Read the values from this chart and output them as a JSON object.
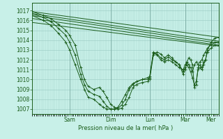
{
  "xlabel": "Pression niveau de la mer( hPa )",
  "bg_color": "#c8f0e8",
  "grid_color": "#a0d0c8",
  "line_color": "#1a5c1a",
  "ylim": [
    1006.5,
    1017.8
  ],
  "yticks": [
    1007,
    1008,
    1009,
    1010,
    1011,
    1012,
    1013,
    1014,
    1015,
    1016,
    1017
  ],
  "day_labels": [
    "Sam",
    "Dim",
    "Lun",
    "Mar",
    "Mer"
  ],
  "day_positions": [
    0.2,
    0.42,
    0.63,
    0.82,
    0.96
  ],
  "xlim": [
    0.0,
    1.0
  ],
  "straight_lines": [
    [
      [
        0.0,
        1016.9
      ],
      [
        1.0,
        1014.3
      ]
    ],
    [
      [
        0.0,
        1016.7
      ],
      [
        1.0,
        1013.9
      ]
    ],
    [
      [
        0.0,
        1016.5
      ],
      [
        1.0,
        1013.7
      ]
    ],
    [
      [
        0.0,
        1016.2
      ],
      [
        1.0,
        1013.5
      ]
    ],
    [
      [
        0.0,
        1015.8
      ],
      [
        1.0,
        1013.4
      ]
    ]
  ],
  "wiggly1": [
    [
      0.0,
      1016.9
    ],
    [
      0.06,
      1016.5
    ],
    [
      0.1,
      1016.2
    ],
    [
      0.14,
      1015.6
    ],
    [
      0.18,
      1015.0
    ],
    [
      0.2,
      1014.5
    ],
    [
      0.23,
      1013.5
    ],
    [
      0.26,
      1011.2
    ],
    [
      0.28,
      1010.0
    ],
    [
      0.3,
      1009.3
    ],
    [
      0.33,
      1009.0
    ],
    [
      0.36,
      1009.2
    ],
    [
      0.38,
      1008.8
    ],
    [
      0.4,
      1008.2
    ],
    [
      0.42,
      1007.5
    ],
    [
      0.44,
      1007.2
    ],
    [
      0.46,
      1007.0
    ],
    [
      0.48,
      1007.1
    ],
    [
      0.5,
      1007.5
    ],
    [
      0.52,
      1008.2
    ],
    [
      0.54,
      1009.2
    ],
    [
      0.56,
      1009.5
    ],
    [
      0.59,
      1009.7
    ],
    [
      0.62,
      1009.8
    ],
    [
      0.63,
      1010.0
    ],
    [
      0.65,
      1012.5
    ],
    [
      0.67,
      1012.8
    ],
    [
      0.69,
      1012.6
    ],
    [
      0.71,
      1012.2
    ],
    [
      0.73,
      1012.5
    ],
    [
      0.75,
      1012.2
    ],
    [
      0.77,
      1011.8
    ],
    [
      0.79,
      1011.5
    ],
    [
      0.81,
      1010.5
    ],
    [
      0.82,
      1011.0
    ],
    [
      0.83,
      1011.8
    ],
    [
      0.84,
      1012.2
    ],
    [
      0.85,
      1012.0
    ],
    [
      0.86,
      1011.5
    ],
    [
      0.87,
      1009.2
    ],
    [
      0.88,
      1009.5
    ],
    [
      0.89,
      1011.2
    ],
    [
      0.9,
      1011.5
    ],
    [
      0.91,
      1011.2
    ],
    [
      0.92,
      1011.8
    ],
    [
      0.93,
      1012.0
    ],
    [
      0.94,
      1013.0
    ],
    [
      0.96,
      1013.8
    ],
    [
      0.98,
      1014.2
    ],
    [
      1.0,
      1014.3
    ]
  ],
  "wiggly2": [
    [
      0.0,
      1016.7
    ],
    [
      0.06,
      1016.3
    ],
    [
      0.1,
      1015.9
    ],
    [
      0.14,
      1015.2
    ],
    [
      0.18,
      1014.5
    ],
    [
      0.2,
      1013.8
    ],
    [
      0.23,
      1012.5
    ],
    [
      0.26,
      1010.5
    ],
    [
      0.28,
      1009.5
    ],
    [
      0.3,
      1008.8
    ],
    [
      0.33,
      1008.5
    ],
    [
      0.36,
      1008.3
    ],
    [
      0.38,
      1007.8
    ],
    [
      0.4,
      1007.3
    ],
    [
      0.42,
      1007.0
    ],
    [
      0.44,
      1007.0
    ],
    [
      0.46,
      1007.1
    ],
    [
      0.48,
      1007.4
    ],
    [
      0.5,
      1008.0
    ],
    [
      0.52,
      1009.0
    ],
    [
      0.54,
      1009.5
    ],
    [
      0.56,
      1009.8
    ],
    [
      0.59,
      1010.0
    ],
    [
      0.62,
      1010.0
    ],
    [
      0.63,
      1010.2
    ],
    [
      0.65,
      1012.7
    ],
    [
      0.67,
      1012.5
    ],
    [
      0.69,
      1012.0
    ],
    [
      0.71,
      1011.8
    ],
    [
      0.73,
      1012.0
    ],
    [
      0.75,
      1011.8
    ],
    [
      0.77,
      1011.5
    ],
    [
      0.79,
      1011.2
    ],
    [
      0.81,
      1011.0
    ],
    [
      0.82,
      1011.5
    ],
    [
      0.83,
      1011.8
    ],
    [
      0.84,
      1011.5
    ],
    [
      0.85,
      1011.2
    ],
    [
      0.86,
      1010.8
    ],
    [
      0.87,
      1011.5
    ],
    [
      0.88,
      1011.8
    ],
    [
      0.89,
      1011.5
    ],
    [
      0.9,
      1011.8
    ],
    [
      0.91,
      1012.0
    ],
    [
      0.92,
      1012.5
    ],
    [
      0.93,
      1012.8
    ],
    [
      0.94,
      1013.2
    ],
    [
      0.96,
      1013.5
    ],
    [
      0.98,
      1013.8
    ],
    [
      1.0,
      1013.8
    ]
  ],
  "wiggly3": [
    [
      0.0,
      1016.5
    ],
    [
      0.06,
      1016.0
    ],
    [
      0.1,
      1015.5
    ],
    [
      0.14,
      1014.7
    ],
    [
      0.18,
      1013.8
    ],
    [
      0.2,
      1013.0
    ],
    [
      0.23,
      1011.5
    ],
    [
      0.26,
      1010.0
    ],
    [
      0.28,
      1009.0
    ],
    [
      0.3,
      1008.2
    ],
    [
      0.33,
      1008.0
    ],
    [
      0.36,
      1007.5
    ],
    [
      0.38,
      1007.2
    ],
    [
      0.4,
      1007.0
    ],
    [
      0.42,
      1007.0
    ],
    [
      0.44,
      1007.0
    ],
    [
      0.46,
      1007.2
    ],
    [
      0.48,
      1007.8
    ],
    [
      0.5,
      1008.5
    ],
    [
      0.52,
      1009.2
    ],
    [
      0.54,
      1009.6
    ],
    [
      0.56,
      1009.8
    ],
    [
      0.59,
      1010.0
    ],
    [
      0.62,
      1010.2
    ],
    [
      0.63,
      1010.3
    ],
    [
      0.65,
      1012.8
    ],
    [
      0.67,
      1012.6
    ],
    [
      0.69,
      1012.2
    ],
    [
      0.71,
      1012.0
    ],
    [
      0.73,
      1012.3
    ],
    [
      0.75,
      1012.0
    ],
    [
      0.77,
      1011.8
    ],
    [
      0.79,
      1011.5
    ],
    [
      0.81,
      1010.8
    ],
    [
      0.82,
      1011.2
    ],
    [
      0.83,
      1011.5
    ],
    [
      0.84,
      1011.2
    ],
    [
      0.85,
      1010.8
    ],
    [
      0.86,
      1010.2
    ],
    [
      0.87,
      1009.5
    ],
    [
      0.88,
      1009.8
    ],
    [
      0.89,
      1011.0
    ],
    [
      0.9,
      1011.2
    ],
    [
      0.91,
      1011.0
    ],
    [
      0.92,
      1011.5
    ],
    [
      0.93,
      1012.0
    ],
    [
      0.94,
      1012.8
    ],
    [
      0.96,
      1013.2
    ],
    [
      0.98,
      1013.5
    ],
    [
      1.0,
      1013.5
    ]
  ]
}
